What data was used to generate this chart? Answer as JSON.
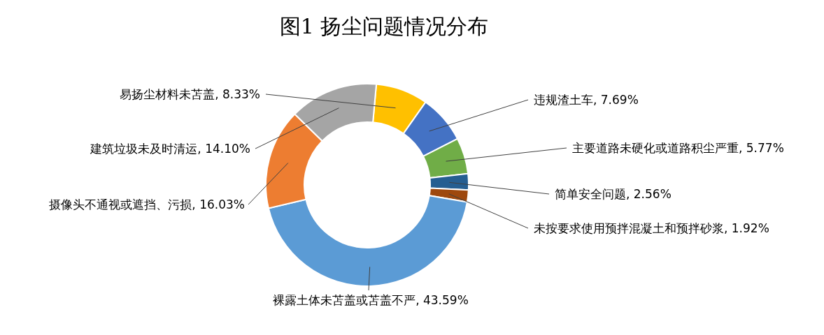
{
  "chart_data": {
    "type": "donut",
    "title": "图1  扬尘问题情况分布",
    "categories": [
      "易扬尘材料未苫盖",
      "违规渣土车",
      "主要道路未硬化或道路积尘严重",
      "简单安全问题",
      "未按要求使用预拌混凝土和预拌砂浆",
      "裸露土体未苫盖或苫盖不严",
      "摄像头不通视或遮挡、污损",
      "建筑垃圾未及时清运"
    ],
    "values": [
      8.33,
      7.69,
      5.77,
      2.56,
      1.92,
      43.59,
      16.03,
      14.1
    ],
    "value_labels": [
      "8.33%",
      "7.69%",
      "5.77%",
      "2.56%",
      "1.92%",
      "43.59%",
      "16.03%",
      "14.10%"
    ],
    "colors": [
      "#ffc000",
      "#4472c4",
      "#70ad47",
      "#255e91",
      "#9e480e",
      "#5b9bd5",
      "#ed7d31",
      "#a5a5a5"
    ]
  }
}
